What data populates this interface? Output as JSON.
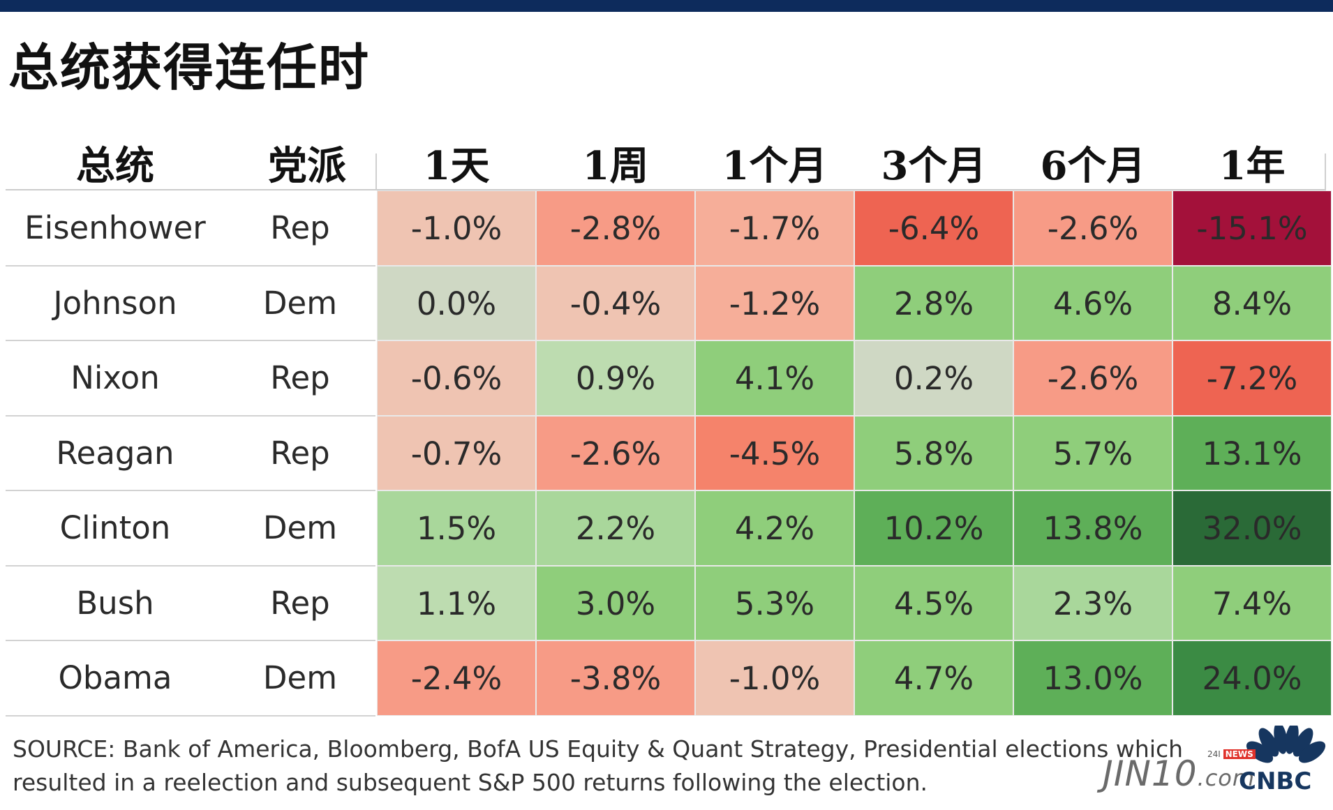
{
  "title": "总统获得连任时",
  "headers": [
    "总统",
    "党派",
    "1天",
    "1周",
    "1个月",
    "3个月",
    "6个月",
    "1年"
  ],
  "rows": [
    {
      "president": "Eisenhower",
      "party": "Rep",
      "cells": [
        "-1.0%",
        "-2.8%",
        "-1.7%",
        "-6.4%",
        "-2.6%",
        "-15.1%"
      ]
    },
    {
      "president": "Johnson",
      "party": "Dem",
      "cells": [
        "0.0%",
        "-0.4%",
        "-1.2%",
        "2.8%",
        "4.6%",
        "8.4%"
      ]
    },
    {
      "president": "Nixon",
      "party": "Rep",
      "cells": [
        "-0.6%",
        "0.9%",
        "4.1%",
        "0.2%",
        "-2.6%",
        "-7.2%"
      ]
    },
    {
      "president": "Reagan",
      "party": "Rep",
      "cells": [
        "-0.7%",
        "-2.6%",
        "-4.5%",
        "5.8%",
        "5.7%",
        "13.1%"
      ]
    },
    {
      "president": "Clinton",
      "party": "Dem",
      "cells": [
        "1.5%",
        "2.2%",
        "4.2%",
        "10.2%",
        "13.8%",
        "32.0%"
      ]
    },
    {
      "president": "Bush",
      "party": "Rep",
      "cells": [
        "1.1%",
        "3.0%",
        "5.3%",
        "4.5%",
        "2.3%",
        "7.4%"
      ]
    },
    {
      "president": "Obama",
      "party": "Dem",
      "cells": [
        "-2.4%",
        "-3.8%",
        "-1.0%",
        "4.7%",
        "13.0%",
        "24.0%"
      ]
    }
  ],
  "chart_data": {
    "type": "heatmap",
    "title": "总统获得连任时",
    "x": [
      "1天",
      "1周",
      "1个月",
      "3个月",
      "6个月",
      "1年"
    ],
    "y": [
      "Eisenhower",
      "Johnson",
      "Nixon",
      "Reagan",
      "Clinton",
      "Bush",
      "Obama"
    ],
    "party": [
      "Rep",
      "Dem",
      "Rep",
      "Rep",
      "Dem",
      "Rep",
      "Dem"
    ],
    "values": [
      [
        -1.0,
        -2.8,
        -1.7,
        -6.4,
        -2.6,
        -15.1
      ],
      [
        0.0,
        -0.4,
        -1.2,
        2.8,
        4.6,
        8.4
      ],
      [
        -0.6,
        0.9,
        4.1,
        0.2,
        -2.6,
        -7.2
      ],
      [
        -0.7,
        -2.6,
        -4.5,
        5.8,
        5.7,
        13.1
      ],
      [
        1.5,
        2.2,
        4.2,
        10.2,
        13.8,
        32.0
      ],
      [
        1.1,
        3.0,
        5.3,
        4.5,
        2.3,
        7.4
      ],
      [
        -2.4,
        -3.8,
        -1.0,
        4.7,
        13.0,
        24.0
      ]
    ],
    "unit": "%",
    "colors": {
      "negative_strong": "#a3113a",
      "negative_mid": "#ee6a55",
      "negative_light": "#f2b8a6",
      "neutral": "#cfd8c4",
      "positive_light": "#a9d79b",
      "positive_mid": "#8fce7b",
      "positive_strong": "#2f7a3a"
    }
  },
  "source": "SOURCE: Bank of America, Bloomberg, BofA US Equity & Quant Strategy, Presidential elections which resulted in a reelection and subsequent S&P 500 returns following the election.",
  "logos": {
    "jin10_main": "JIN10",
    "jin10_com": ".com",
    "jin10_tag_prefix": "24I",
    "jin10_tag_news": "NEWS",
    "cnbc": "CNBC"
  }
}
